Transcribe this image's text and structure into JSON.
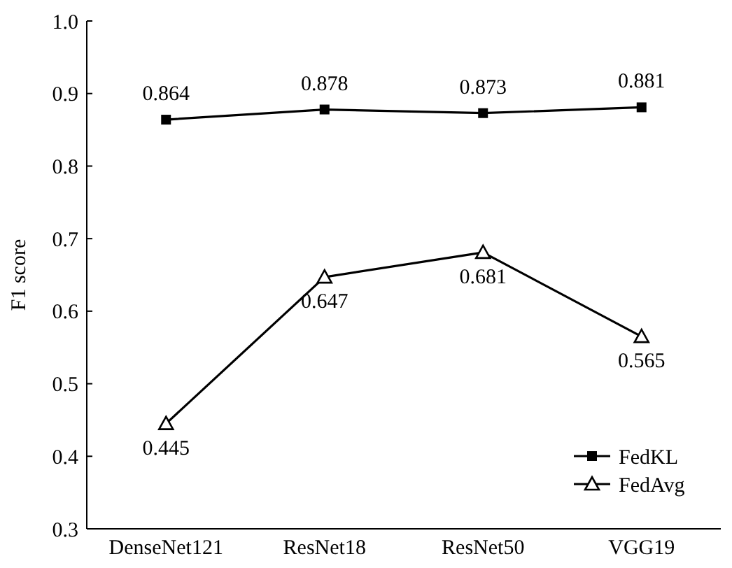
{
  "chart_data": {
    "type": "line",
    "ylabel": "F1 score",
    "categories": [
      "DenseNet121",
      "ResNet18",
      "ResNet50",
      "VGG19"
    ],
    "series": [
      {
        "name": "FedKL",
        "color": "#000000",
        "marker": "square",
        "values": [
          0.864,
          0.878,
          0.873,
          0.881
        ]
      },
      {
        "name": "FedAvg",
        "color": "#000000",
        "marker": "triangle",
        "values": [
          0.445,
          0.647,
          0.681,
          0.565
        ]
      }
    ],
    "ylim": [
      0.3,
      1.0
    ],
    "yticks": [
      {
        "value": 0.3,
        "label": "0.3"
      },
      {
        "value": 0.4,
        "label": "0.4"
      },
      {
        "value": 0.5,
        "label": "0.5"
      },
      {
        "value": 0.6,
        "label": "0.6"
      },
      {
        "value": 0.7,
        "label": "0.7"
      },
      {
        "value": 0.8,
        "label": "0.8"
      },
      {
        "value": 0.9,
        "label": "0.9"
      },
      {
        "value": 1.0,
        "label": "1.0"
      }
    ],
    "data_labels": true,
    "legend": "bottom right",
    "grid": false,
    "line_style": "solid"
  }
}
